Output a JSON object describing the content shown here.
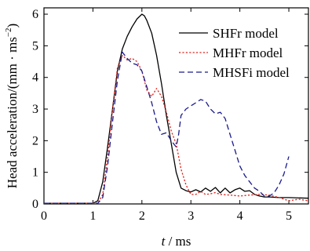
{
  "chart_data": {
    "type": "line",
    "xlabel_italic": "t",
    "xlabel_rest": " / ms",
    "ylabel": "Head acceleration/(mm · ms",
    "ylabel_sup": "−2",
    "ylabel_close": ")",
    "xlim": [
      0,
      5.4
    ],
    "ylim": [
      0,
      6.2
    ],
    "xticks": [
      0,
      1,
      2,
      3,
      4,
      5
    ],
    "yticks": [
      1,
      2,
      3,
      4,
      5,
      6
    ],
    "x_origin_label": "0",
    "legend_position": "top-right",
    "series": [
      {
        "name": "SHFr model",
        "color": "#000000",
        "dash": "solid",
        "points": [
          [
            0,
            0.02
          ],
          [
            1.0,
            0.02
          ],
          [
            1.1,
            0.1
          ],
          [
            1.2,
            0.7
          ],
          [
            1.3,
            1.8
          ],
          [
            1.4,
            3.0
          ],
          [
            1.5,
            4.2
          ],
          [
            1.6,
            4.9
          ],
          [
            1.7,
            5.3
          ],
          [
            1.8,
            5.6
          ],
          [
            1.9,
            5.85
          ],
          [
            2.0,
            6.0
          ],
          [
            2.05,
            5.95
          ],
          [
            2.1,
            5.8
          ],
          [
            2.2,
            5.4
          ],
          [
            2.3,
            4.7
          ],
          [
            2.4,
            3.8
          ],
          [
            2.5,
            2.8
          ],
          [
            2.6,
            1.9
          ],
          [
            2.7,
            1.0
          ],
          [
            2.8,
            0.5
          ],
          [
            2.9,
            0.42
          ],
          [
            3.0,
            0.38
          ],
          [
            3.1,
            0.45
          ],
          [
            3.2,
            0.38
          ],
          [
            3.3,
            0.5
          ],
          [
            3.4,
            0.4
          ],
          [
            3.5,
            0.52
          ],
          [
            3.6,
            0.35
          ],
          [
            3.7,
            0.5
          ],
          [
            3.8,
            0.35
          ],
          [
            3.9,
            0.45
          ],
          [
            4.0,
            0.5
          ],
          [
            4.1,
            0.4
          ],
          [
            4.2,
            0.42
          ],
          [
            4.3,
            0.3
          ],
          [
            4.4,
            0.25
          ],
          [
            4.5,
            0.22
          ],
          [
            4.6,
            0.22
          ],
          [
            4.8,
            0.2
          ],
          [
            5.0,
            0.2
          ],
          [
            5.4,
            0.18
          ]
        ]
      },
      {
        "name": "MHFr model",
        "color": "#e0201b",
        "dash": "dotted",
        "points": [
          [
            0,
            0.02
          ],
          [
            1.1,
            0.02
          ],
          [
            1.2,
            0.3
          ],
          [
            1.3,
            1.5
          ],
          [
            1.4,
            3.0
          ],
          [
            1.5,
            4.3
          ],
          [
            1.6,
            4.7
          ],
          [
            1.7,
            4.55
          ],
          [
            1.8,
            4.6
          ],
          [
            1.9,
            4.5
          ],
          [
            2.0,
            4.2
          ],
          [
            2.1,
            3.6
          ],
          [
            2.2,
            3.4
          ],
          [
            2.3,
            3.65
          ],
          [
            2.4,
            3.4
          ],
          [
            2.5,
            2.9
          ],
          [
            2.6,
            2.3
          ],
          [
            2.7,
            1.9
          ],
          [
            2.8,
            1.1
          ],
          [
            2.9,
            0.6
          ],
          [
            3.0,
            0.3
          ],
          [
            3.1,
            0.3
          ],
          [
            3.2,
            0.4
          ],
          [
            3.3,
            0.3
          ],
          [
            3.4,
            0.32
          ],
          [
            3.5,
            0.36
          ],
          [
            3.6,
            0.3
          ],
          [
            3.8,
            0.28
          ],
          [
            4.0,
            0.25
          ],
          [
            4.2,
            0.28
          ],
          [
            4.4,
            0.3
          ],
          [
            4.6,
            0.28
          ],
          [
            4.8,
            0.2
          ],
          [
            5.0,
            0.1
          ],
          [
            5.2,
            0.15
          ],
          [
            5.4,
            0.1
          ]
        ]
      },
      {
        "name": "MHSFi model",
        "color": "#1a1a8c",
        "dash": "dashed",
        "points": [
          [
            0,
            0.02
          ],
          [
            1.1,
            0.02
          ],
          [
            1.2,
            0.2
          ],
          [
            1.3,
            1.2
          ],
          [
            1.4,
            2.6
          ],
          [
            1.5,
            3.9
          ],
          [
            1.6,
            4.8
          ],
          [
            1.7,
            4.6
          ],
          [
            1.8,
            4.45
          ],
          [
            1.9,
            4.4
          ],
          [
            2.0,
            4.2
          ],
          [
            2.1,
            3.7
          ],
          [
            2.2,
            3.2
          ],
          [
            2.3,
            2.6
          ],
          [
            2.4,
            2.2
          ],
          [
            2.5,
            2.25
          ],
          [
            2.6,
            2.0
          ],
          [
            2.7,
            1.8
          ],
          [
            2.75,
            2.2
          ],
          [
            2.8,
            2.8
          ],
          [
            2.9,
            3.0
          ],
          [
            3.0,
            3.1
          ],
          [
            3.1,
            3.2
          ],
          [
            3.2,
            3.3
          ],
          [
            3.3,
            3.25
          ],
          [
            3.4,
            3.0
          ],
          [
            3.5,
            2.85
          ],
          [
            3.6,
            2.9
          ],
          [
            3.7,
            2.7
          ],
          [
            3.8,
            2.2
          ],
          [
            3.9,
            1.7
          ],
          [
            4.0,
            1.2
          ],
          [
            4.1,
            0.9
          ],
          [
            4.2,
            0.7
          ],
          [
            4.3,
            0.5
          ],
          [
            4.4,
            0.4
          ],
          [
            4.5,
            0.25
          ],
          [
            4.6,
            0.25
          ],
          [
            4.7,
            0.35
          ],
          [
            4.8,
            0.6
          ],
          [
            4.9,
            0.95
          ],
          [
            5.0,
            1.5
          ]
        ]
      }
    ]
  }
}
